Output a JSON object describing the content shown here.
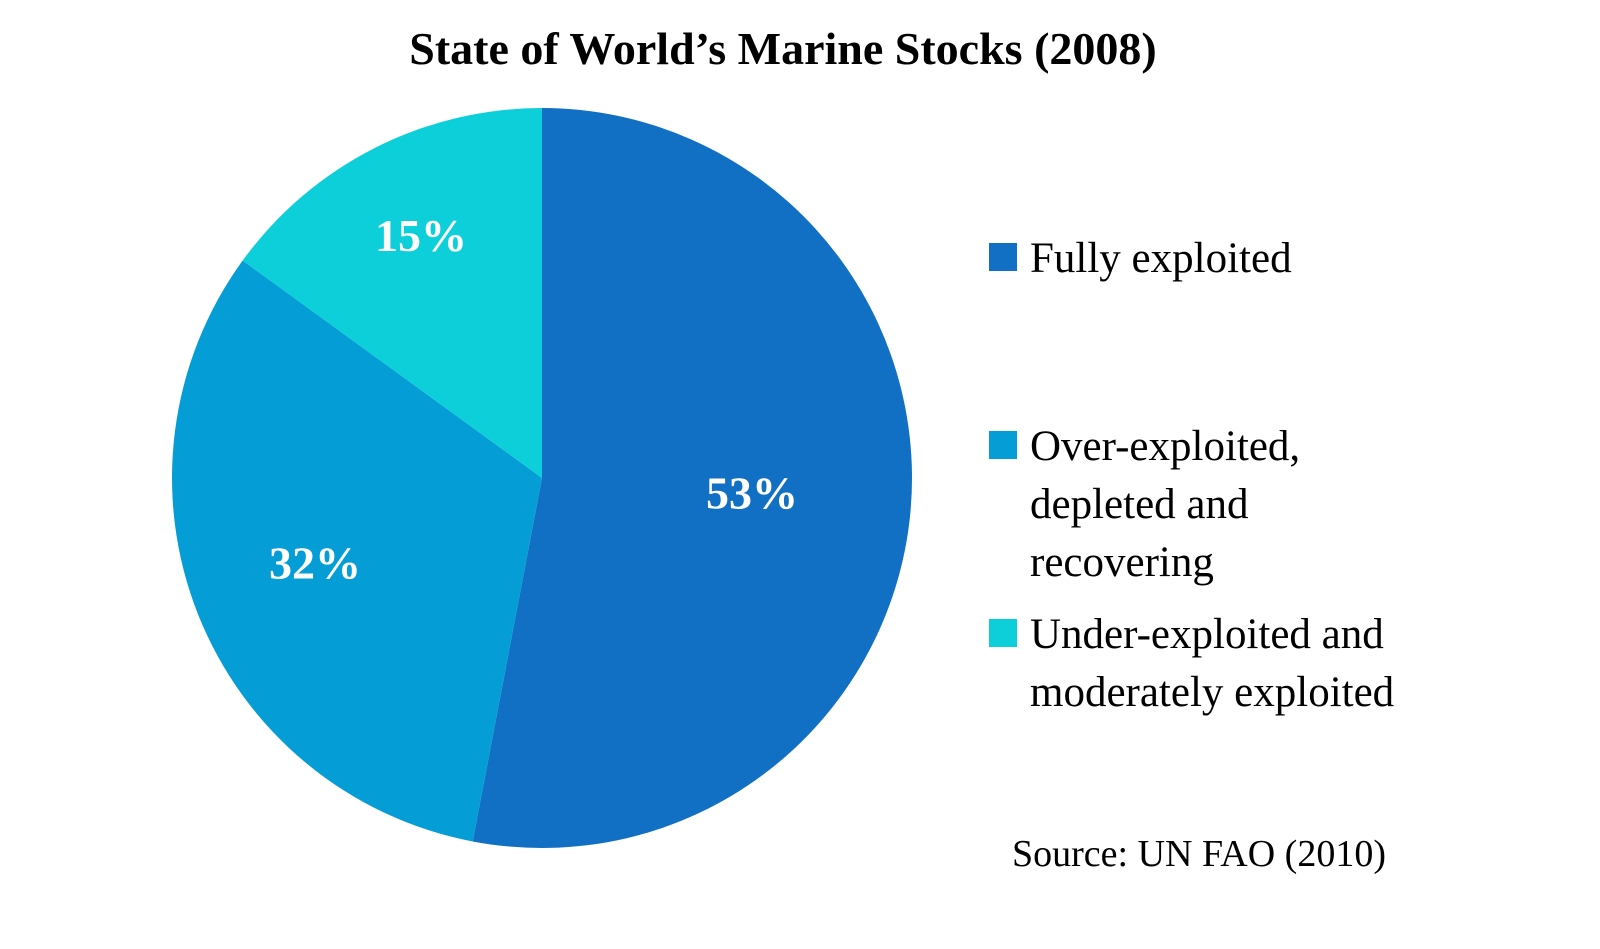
{
  "chart_data": {
    "type": "pie",
    "title": "State of World’s Marine Stocks (2008)",
    "start_angle": "12 o'clock",
    "direction": "clockwise",
    "slices": [
      {
        "name": "Fully exploited",
        "value": 53,
        "label": "53%",
        "color": "#116fc4"
      },
      {
        "name": "Over-exploited,\ndepleted and\nrecovering",
        "value": 32,
        "label": "32%",
        "color": "#049dd6"
      },
      {
        "name": "Under-exploited and\nmoderately exploited",
        "value": 15,
        "label": "15%",
        "color": "#0ccfd9"
      }
    ],
    "legend_position": "right",
    "source": "Source: UN FAO (2010)"
  }
}
